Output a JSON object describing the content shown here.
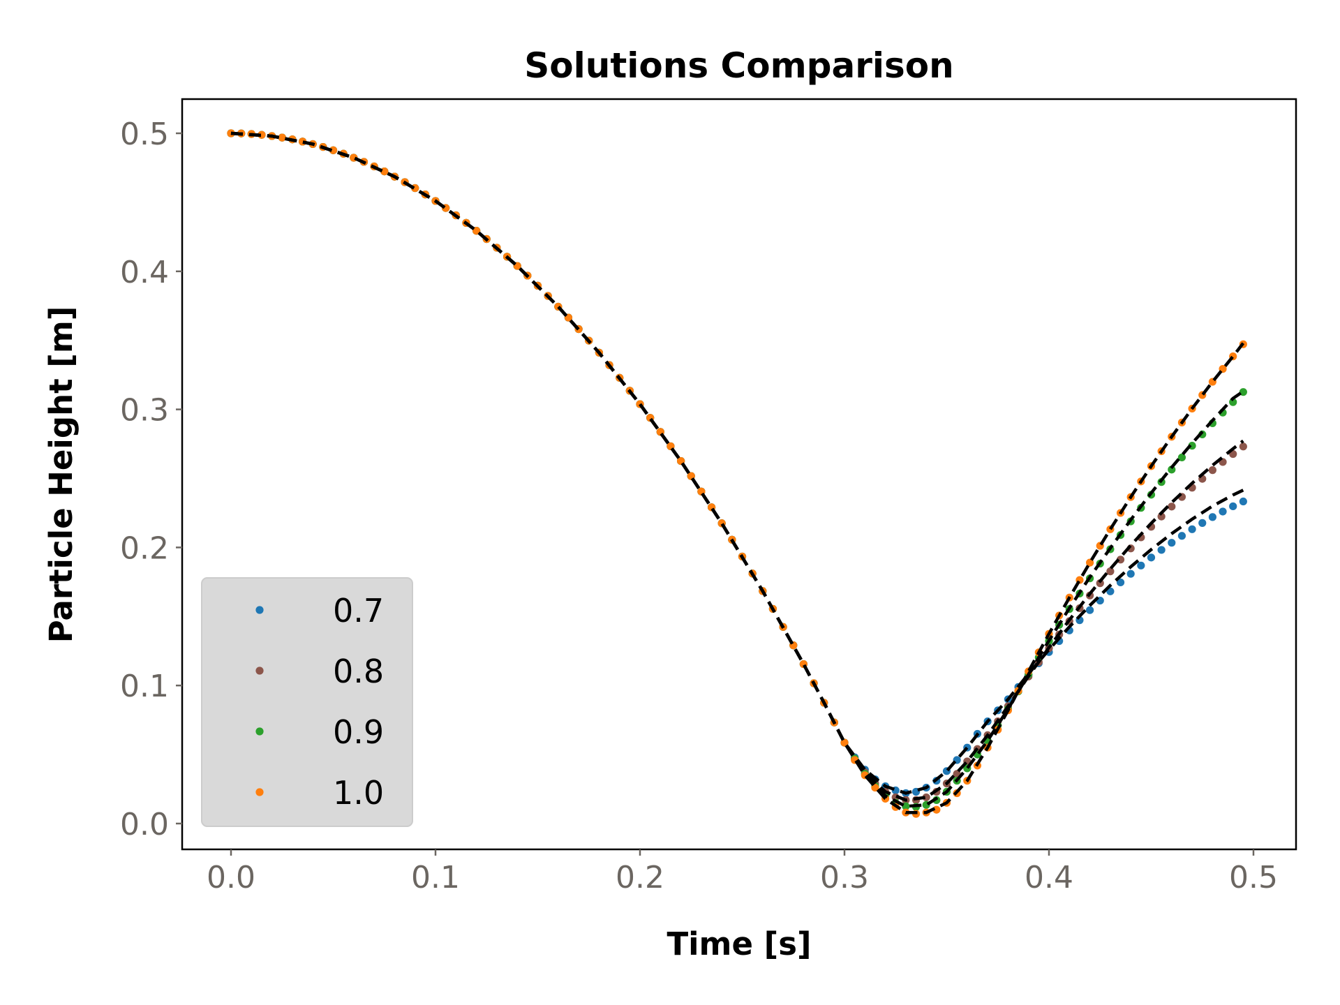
{
  "chart_data": {
    "type": "scatter",
    "title": "Solutions Comparison",
    "xlabel": "Time [s]",
    "ylabel": "Particle Height [m]",
    "xlim": [
      -0.025,
      0.52
    ],
    "ylim": [
      -0.018,
      0.525
    ],
    "xticks": [
      "0.0",
      "0.1",
      "0.2",
      "0.3",
      "0.4",
      "0.5"
    ],
    "yticks": [
      "0.0",
      "0.1",
      "0.2",
      "0.3",
      "0.4",
      "0.5"
    ],
    "grid": false,
    "legend_placement": "lower-left",
    "x": [
      0,
      0.005,
      0.01,
      0.015,
      0.02,
      0.025,
      0.03,
      0.035,
      0.04,
      0.045,
      0.05,
      0.055,
      0.06,
      0.065,
      0.07,
      0.075,
      0.08,
      0.085,
      0.09,
      0.095,
      0.1,
      0.105,
      0.11,
      0.115,
      0.12,
      0.125,
      0.13,
      0.135,
      0.14,
      0.145,
      0.15,
      0.155,
      0.16,
      0.165,
      0.17,
      0.175,
      0.18,
      0.185,
      0.19,
      0.195,
      0.2,
      0.205,
      0.21,
      0.215,
      0.22,
      0.225,
      0.23,
      0.235,
      0.24,
      0.245,
      0.25,
      0.255,
      0.26,
      0.265,
      0.27,
      0.275,
      0.28,
      0.285,
      0.29,
      0.295,
      0.3,
      0.305,
      0.31,
      0.315,
      0.32,
      0.325,
      0.33,
      0.335,
      0.34,
      0.345,
      0.35,
      0.355,
      0.36,
      0.365,
      0.37,
      0.375,
      0.38,
      0.385,
      0.39,
      0.395,
      0.4,
      0.405,
      0.41,
      0.415,
      0.42,
      0.425,
      0.43,
      0.435,
      0.44,
      0.445,
      0.45,
      0.455,
      0.46,
      0.465,
      0.47,
      0.475,
      0.48,
      0.485,
      0.49,
      0.495
    ],
    "series": [
      {
        "name": "0.7",
        "color": "#1f77b4",
        "marker": "dot",
        "values": [
          0.5,
          0.4999,
          0.4995,
          0.4989,
          0.498,
          0.4969,
          0.4956,
          0.494,
          0.4922,
          0.4901,
          0.4877,
          0.4852,
          0.4823,
          0.4793,
          0.476,
          0.4724,
          0.4686,
          0.4646,
          0.4603,
          0.4557,
          0.451,
          0.4459,
          0.4406,
          0.4351,
          0.4294,
          0.4234,
          0.4171,
          0.4106,
          0.4039,
          0.3969,
          0.3896,
          0.3822,
          0.3744,
          0.3665,
          0.3582,
          0.3498,
          0.3411,
          0.3321,
          0.3229,
          0.3135,
          0.3038,
          0.2939,
          0.2837,
          0.2733,
          0.2626,
          0.2517,
          0.2405,
          0.2291,
          0.2175,
          0.2056,
          0.1934,
          0.1811,
          0.1684,
          0.1555,
          0.1424,
          0.1291,
          0.1155,
          0.1016,
          0.0875,
          0.0732,
          0.0586,
          0.048,
          0.039,
          0.032,
          0.027,
          0.024,
          0.022,
          0.023,
          0.026,
          0.031,
          0.038,
          0.046,
          0.055,
          0.065,
          0.074,
          0.082,
          0.09,
          0.0989,
          0.1076,
          0.1161,
          0.1242,
          0.1322,
          0.1399,
          0.1473,
          0.1546,
          0.1615,
          0.1682,
          0.1747,
          0.1809,
          0.1869,
          0.1927,
          0.1982,
          0.2034,
          0.2084,
          0.2132,
          0.2177,
          0.222,
          0.226,
          0.2298,
          0.2333
        ]
      },
      {
        "name": "0.8",
        "color": "#8c564b",
        "marker": "dot",
        "values": [
          0.5,
          0.4999,
          0.4995,
          0.4989,
          0.498,
          0.4969,
          0.4956,
          0.494,
          0.4922,
          0.4901,
          0.4877,
          0.4852,
          0.4823,
          0.4793,
          0.476,
          0.4724,
          0.4686,
          0.4646,
          0.4603,
          0.4557,
          0.451,
          0.4459,
          0.4406,
          0.4351,
          0.4294,
          0.4234,
          0.4171,
          0.4106,
          0.4039,
          0.3969,
          0.3896,
          0.3822,
          0.3744,
          0.3665,
          0.3582,
          0.3498,
          0.3411,
          0.3321,
          0.3229,
          0.3135,
          0.3038,
          0.2939,
          0.2837,
          0.2733,
          0.2626,
          0.2517,
          0.2405,
          0.2291,
          0.2175,
          0.2056,
          0.1934,
          0.1811,
          0.1684,
          0.1555,
          0.1424,
          0.1291,
          0.1155,
          0.1016,
          0.0875,
          0.0732,
          0.0586,
          0.047,
          0.037,
          0.029,
          0.023,
          0.019,
          0.017,
          0.017,
          0.019,
          0.023,
          0.029,
          0.036,
          0.045,
          0.054,
          0.064,
          0.074,
          0.085,
          0.0959,
          0.1065,
          0.1169,
          0.127,
          0.1369,
          0.1466,
          0.156,
          0.1652,
          0.1741,
          0.1827,
          0.1912,
          0.1993,
          0.2073,
          0.215,
          0.2224,
          0.2296,
          0.2366,
          0.2433,
          0.2497,
          0.256,
          0.2619,
          0.2677,
          0.2731
        ]
      },
      {
        "name": "0.9",
        "color": "#2ca02c",
        "marker": "dot",
        "values": [
          0.5,
          0.4999,
          0.4995,
          0.4989,
          0.498,
          0.4969,
          0.4956,
          0.494,
          0.4922,
          0.4901,
          0.4877,
          0.4852,
          0.4823,
          0.4793,
          0.476,
          0.4724,
          0.4686,
          0.4646,
          0.4603,
          0.4557,
          0.451,
          0.4459,
          0.4406,
          0.4351,
          0.4294,
          0.4234,
          0.4171,
          0.4106,
          0.4039,
          0.3969,
          0.3896,
          0.3822,
          0.3744,
          0.3665,
          0.3582,
          0.3498,
          0.3411,
          0.3321,
          0.3229,
          0.3135,
          0.3038,
          0.2939,
          0.2837,
          0.2733,
          0.2626,
          0.2517,
          0.2405,
          0.2291,
          0.2175,
          0.2056,
          0.1934,
          0.1811,
          0.1684,
          0.1555,
          0.1424,
          0.1291,
          0.1155,
          0.1016,
          0.0875,
          0.0732,
          0.0586,
          0.047,
          0.036,
          0.027,
          0.02,
          0.015,
          0.0125,
          0.012,
          0.0135,
          0.017,
          0.023,
          0.031,
          0.04,
          0.05,
          0.06,
          0.071,
          0.083,
          0.0957,
          0.1081,
          0.1203,
          0.1322,
          0.1439,
          0.1554,
          0.1666,
          0.1776,
          0.1883,
          0.1987,
          0.209,
          0.2189,
          0.2287,
          0.2382,
          0.2474,
          0.2564,
          0.2652,
          0.2737,
          0.2819,
          0.29,
          0.2977,
          0.3053,
          0.3126
        ]
      },
      {
        "name": "1.0",
        "color": "#ff7f0e",
        "marker": "dot",
        "values": [
          0.5,
          0.4999,
          0.4995,
          0.4989,
          0.498,
          0.4969,
          0.4956,
          0.494,
          0.4922,
          0.4901,
          0.4877,
          0.4852,
          0.4823,
          0.4793,
          0.476,
          0.4724,
          0.4686,
          0.4646,
          0.4603,
          0.4557,
          0.451,
          0.4459,
          0.4406,
          0.4351,
          0.4294,
          0.4234,
          0.4171,
          0.4106,
          0.4039,
          0.3969,
          0.3896,
          0.3822,
          0.3744,
          0.3665,
          0.3582,
          0.3498,
          0.3411,
          0.3321,
          0.3229,
          0.3135,
          0.3038,
          0.2939,
          0.2837,
          0.2733,
          0.2626,
          0.2517,
          0.2405,
          0.2291,
          0.2175,
          0.2056,
          0.1934,
          0.1811,
          0.1684,
          0.1555,
          0.1424,
          0.1291,
          0.1155,
          0.1016,
          0.0875,
          0.0732,
          0.0586,
          0.046,
          0.035,
          0.026,
          0.018,
          0.012,
          0.008,
          0.007,
          0.008,
          0.01,
          0.015,
          0.022,
          0.031,
          0.042,
          0.055,
          0.068,
          0.082,
          0.0962,
          0.1102,
          0.124,
          0.1374,
          0.1507,
          0.1637,
          0.1764,
          0.189,
          0.2012,
          0.2132,
          0.225,
          0.2365,
          0.2478,
          0.2589,
          0.2697,
          0.2802,
          0.2905,
          0.3006,
          0.3104,
          0.32,
          0.3293,
          0.3384,
          0.3472
        ]
      }
    ],
    "reference_x": [
      0,
      0.02,
      0.04,
      0.06,
      0.08,
      0.1,
      0.12,
      0.14,
      0.16,
      0.18,
      0.2,
      0.22,
      0.24,
      0.26,
      0.28,
      0.29,
      0.3,
      0.31,
      0.32,
      0.33,
      0.34,
      0.35,
      0.36,
      0.37,
      0.38,
      0.39,
      0.4,
      0.41,
      0.42,
      0.43,
      0.44,
      0.45,
      0.46,
      0.47,
      0.48,
      0.49,
      0.495
    ],
    "reference_lines": [
      {
        "color": "#000000",
        "style": "dashed",
        "values": [
          0.5,
          0.498,
          0.4922,
          0.4823,
          0.4686,
          0.451,
          0.4294,
          0.4039,
          0.3744,
          0.3411,
          0.3038,
          0.2626,
          0.2175,
          0.1684,
          0.1155,
          0.0875,
          0.0586,
          0.039,
          0.027,
          0.022,
          0.026,
          0.038,
          0.055,
          0.074,
          0.09,
          0.1085,
          0.126,
          0.1425,
          0.158,
          0.1725,
          0.186,
          0.1985,
          0.21,
          0.2205,
          0.23,
          0.238,
          0.2415
        ]
      },
      {
        "color": "#000000",
        "style": "dashed",
        "values": [
          0.5,
          0.498,
          0.4922,
          0.4823,
          0.4686,
          0.451,
          0.4294,
          0.4039,
          0.3744,
          0.3411,
          0.3038,
          0.2626,
          0.2175,
          0.1684,
          0.1155,
          0.0875,
          0.0586,
          0.037,
          0.023,
          0.017,
          0.019,
          0.029,
          0.045,
          0.064,
          0.085,
          0.1067,
          0.1275,
          0.1475,
          0.1665,
          0.1845,
          0.2015,
          0.2175,
          0.2325,
          0.2465,
          0.2595,
          0.2715,
          0.2772
        ]
      },
      {
        "color": "#000000",
        "style": "dashed",
        "values": [
          0.5,
          0.498,
          0.4922,
          0.4823,
          0.4686,
          0.451,
          0.4294,
          0.4039,
          0.3744,
          0.3411,
          0.3038,
          0.2626,
          0.2175,
          0.1684,
          0.1155,
          0.0875,
          0.0586,
          0.036,
          0.02,
          0.0125,
          0.0135,
          0.023,
          0.04,
          0.06,
          0.083,
          0.1081,
          0.1325,
          0.156,
          0.1785,
          0.1995,
          0.22,
          0.2395,
          0.258,
          0.2755,
          0.292,
          0.308,
          0.313
        ]
      },
      {
        "color": "#000000",
        "style": "dashed",
        "values": [
          0.5,
          0.498,
          0.4922,
          0.4823,
          0.4686,
          0.451,
          0.4294,
          0.4039,
          0.3744,
          0.3411,
          0.3038,
          0.2626,
          0.2175,
          0.1684,
          0.1155,
          0.0875,
          0.0586,
          0.035,
          0.018,
          0.008,
          0.008,
          0.015,
          0.031,
          0.055,
          0.082,
          0.1102,
          0.1374,
          0.1637,
          0.189,
          0.2132,
          0.2365,
          0.2589,
          0.2802,
          0.3006,
          0.32,
          0.3384,
          0.348
        ]
      }
    ],
    "legend_background": "#d9d9d9"
  }
}
